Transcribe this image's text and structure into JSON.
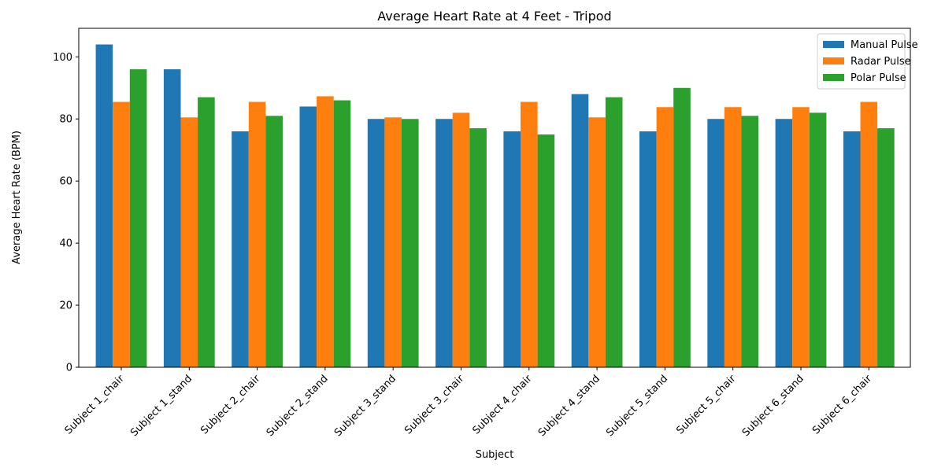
{
  "chart_data": {
    "type": "bar",
    "title": "Average Heart Rate at 4 Feet - Tripod",
    "xlabel": "Subject",
    "ylabel": "Average Heart Rate (BPM)",
    "ylim": [
      0,
      109.2
    ],
    "yticks": [
      0,
      20,
      40,
      60,
      80,
      100
    ],
    "grid": false,
    "legend_position": "top-right",
    "categories": [
      "Subject 1_chair",
      "Subject 1_stand",
      "Subject 2_chair",
      "Subject 2_stand",
      "Subject 3_stand",
      "Subject 3_chair",
      "Subject 4_chair",
      "Subject 4_stand",
      "Subject 5_stand",
      "Subject 5_chair",
      "Subject 6_stand",
      "Subject 6_chair"
    ],
    "series": [
      {
        "name": "Manual Pulse",
        "color": "#1f77b4",
        "values": [
          104,
          96,
          76,
          84,
          80,
          80,
          76,
          88,
          76,
          80,
          80,
          76
        ]
      },
      {
        "name": "Radar Pulse",
        "color": "#ff7f0e",
        "values": [
          85.5,
          80.5,
          85.5,
          87.3,
          80.5,
          82,
          85.5,
          80.5,
          83.8,
          83.8,
          83.8,
          85.5
        ]
      },
      {
        "name": "Polar Pulse",
        "color": "#2ca02c",
        "values": [
          96,
          87,
          81,
          86,
          80,
          77,
          75,
          87,
          90,
          81,
          82,
          77
        ]
      }
    ]
  }
}
